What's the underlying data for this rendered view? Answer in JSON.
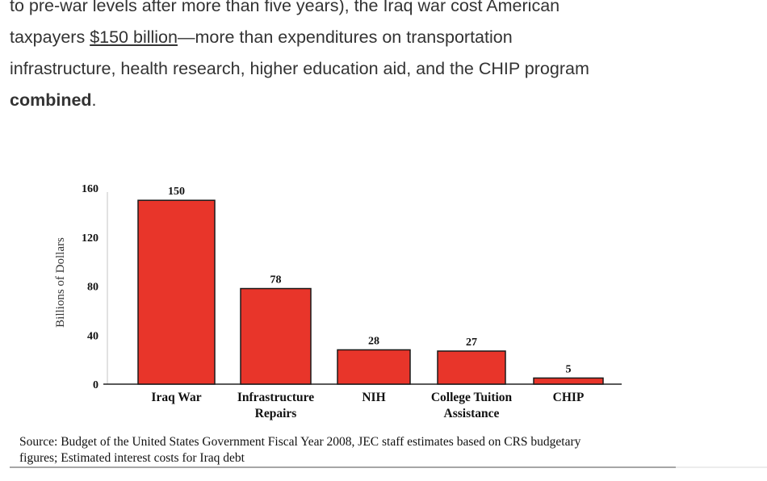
{
  "article": {
    "line1": "to pre-war levels after more than five years), the Iraq war cost American",
    "line2_pre": "taxpayers ",
    "line2_link": "$150 billion",
    "line2_post": "—more than expenditures on transportation",
    "line3": "infrastructure, health research, higher education aid, and the CHIP program",
    "line4_bold": "combined",
    "line4_post": "."
  },
  "chart_data": {
    "type": "bar",
    "title": "",
    "xlabel": "",
    "ylabel": "Billions of Dollars",
    "ylim": [
      0,
      160
    ],
    "yticks": [
      0,
      40,
      80,
      120,
      160
    ],
    "grid": false,
    "categories": [
      [
        "Iraq War"
      ],
      [
        "Infrastructure",
        "Repairs"
      ],
      [
        "NIH"
      ],
      [
        "College Tuition",
        "Assistance"
      ],
      [
        "CHIP"
      ]
    ],
    "values": [
      150,
      78,
      28,
      27,
      5
    ],
    "data_labels": [
      "150",
      "78",
      "28",
      "27",
      "5"
    ],
    "bar_color": "#e8352a",
    "bar_edge_color": "#1a1a1a"
  },
  "source": {
    "line1": "Source: Budget of the United States Government Fiscal Year 2008, JEC staff estimates based on CRS budgetary",
    "line2": "figures; Estimated interest costs for Iraq debt"
  }
}
